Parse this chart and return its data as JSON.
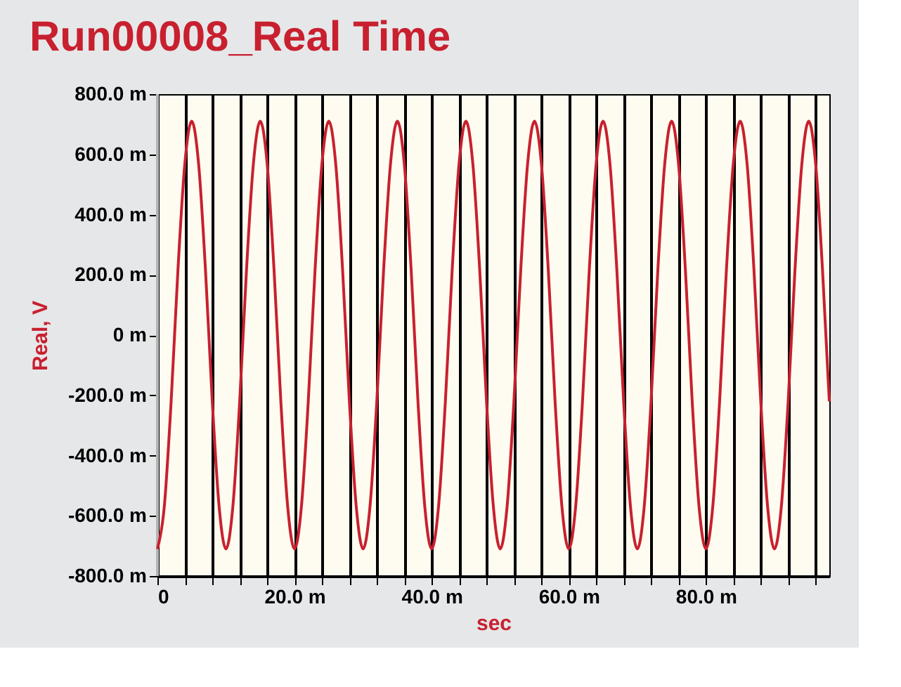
{
  "chart_data": {
    "type": "line",
    "title": "Run00008_Real Time",
    "xlabel": "sec",
    "ylabel": "Real, V",
    "series": [
      {
        "color": "#c8202f",
        "x": [
          0,
          1,
          2,
          3,
          4,
          5,
          6,
          7,
          8,
          9,
          10,
          11,
          12,
          13,
          14,
          15,
          16,
          17,
          18,
          19,
          20,
          21,
          22,
          23,
          24,
          25,
          26,
          27,
          28,
          29,
          30,
          31,
          32,
          33,
          34,
          35,
          36,
          37,
          38,
          39,
          40,
          41,
          42,
          43,
          44,
          45,
          46,
          47,
          48,
          49,
          50,
          51,
          52,
          53,
          54,
          55,
          56,
          57,
          58,
          59,
          60,
          61,
          62,
          63,
          64,
          65,
          66,
          67,
          68,
          69,
          70,
          71,
          72,
          73,
          74,
          75,
          76,
          77,
          78,
          79,
          80,
          81,
          82,
          83,
          84,
          85,
          86,
          87,
          88,
          89,
          90,
          91,
          92,
          93,
          94,
          95,
          96,
          97,
          98
        ],
        "values": [
          -710,
          -570,
          -220,
          220,
          570,
          710,
          570,
          220,
          -220,
          -570,
          -710,
          -570,
          -220,
          220,
          570,
          710,
          570,
          220,
          -220,
          -570,
          -710,
          -570,
          -220,
          220,
          570,
          710,
          570,
          220,
          -220,
          -570,
          -710,
          -570,
          -220,
          220,
          570,
          710,
          570,
          220,
          -220,
          -570,
          -710,
          -570,
          -220,
          220,
          570,
          710,
          570,
          220,
          -220,
          -570,
          -710,
          -570,
          -220,
          220,
          570,
          710,
          570,
          220,
          -220,
          -570,
          -710,
          -570,
          -220,
          220,
          570,
          710,
          570,
          220,
          -220,
          -570,
          -710,
          -570,
          -220,
          220,
          570,
          710,
          570,
          220,
          -220,
          -570,
          -710,
          -570,
          -220,
          220,
          570,
          710,
          570,
          220,
          -220,
          -570,
          -710,
          -570,
          -220,
          220,
          570,
          710,
          570,
          220,
          -220
        ]
      }
    ],
    "xlim": [
      0,
      98
    ],
    "xticks": [
      {
        "value": 0,
        "label": "0"
      },
      {
        "value": 4,
        "label": null
      },
      {
        "value": 8,
        "label": null
      },
      {
        "value": 12,
        "label": null
      },
      {
        "value": 16,
        "label": null
      },
      {
        "value": 20,
        "label": "20.0 m"
      },
      {
        "value": 24,
        "label": null
      },
      {
        "value": 28,
        "label": null
      },
      {
        "value": 32,
        "label": null
      },
      {
        "value": 36,
        "label": null
      },
      {
        "value": 40,
        "label": "40.0 m"
      },
      {
        "value": 44,
        "label": null
      },
      {
        "value": 48,
        "label": null
      },
      {
        "value": 52,
        "label": null
      },
      {
        "value": 56,
        "label": null
      },
      {
        "value": 60,
        "label": "60.0 m"
      },
      {
        "value": 64,
        "label": null
      },
      {
        "value": 68,
        "label": null
      },
      {
        "value": 72,
        "label": null
      },
      {
        "value": 76,
        "label": null
      },
      {
        "value": 80,
        "label": "80.0 m"
      },
      {
        "value": 84,
        "label": null
      },
      {
        "value": 88,
        "label": null
      },
      {
        "value": 92,
        "label": null
      },
      {
        "value": 96,
        "label": null
      }
    ],
    "ylim": [
      -800,
      800
    ],
    "yticks": [
      {
        "value": -800,
        "label": "-800.0 m"
      },
      {
        "value": -600,
        "label": "-600.0 m"
      },
      {
        "value": -400,
        "label": "-400.0 m"
      },
      {
        "value": -200,
        "label": "-200.0 m"
      },
      {
        "value": 0,
        "label": "0 m"
      },
      {
        "value": 200,
        "label": "200.0 m"
      },
      {
        "value": 400,
        "label": "400.0 m"
      },
      {
        "value": 600,
        "label": "600.0 m"
      },
      {
        "value": 800,
        "label": "800.0 m"
      }
    ],
    "grid": true,
    "marker": "none",
    "line_style": "solid"
  }
}
